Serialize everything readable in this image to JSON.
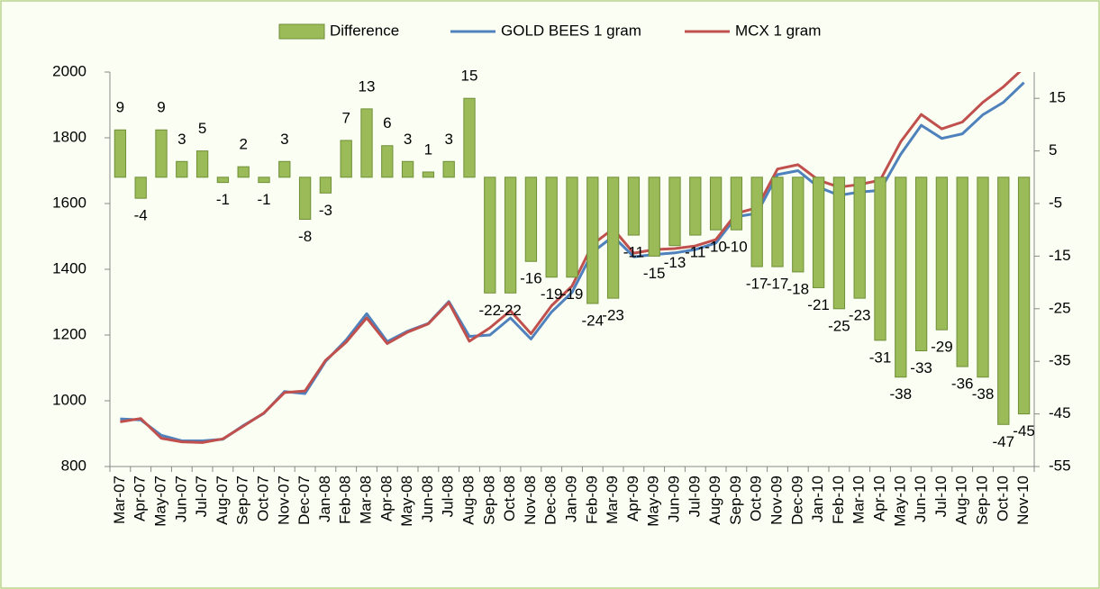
{
  "chart_data": {
    "type": "bar",
    "categories": [
      "Mar-07",
      "Apr-07",
      "May-07",
      "Jun-07",
      "Jul-07",
      "Aug-07",
      "Sep-07",
      "Oct-07",
      "Nov-07",
      "Dec-07",
      "Jan-08",
      "Feb-08",
      "Mar-08",
      "Apr-08",
      "May-08",
      "Jun-08",
      "Jul-08",
      "Aug-08",
      "Sep-08",
      "Oct-08",
      "Nov-08",
      "Dec-08",
      "Jan-09",
      "Feb-09",
      "Mar-09",
      "Apr-09",
      "May-09",
      "Jun-09",
      "Jul-09",
      "Aug-09",
      "Sep-09",
      "Oct-09",
      "Nov-09",
      "Dec-09",
      "Jan-10",
      "Feb-10",
      "Mar-10",
      "Apr-10",
      "May-10",
      "Jun-10",
      "Jul-10",
      "Aug-10",
      "Sep-10",
      "Oct-10",
      "Nov-10"
    ],
    "series": [
      {
        "name": "Difference",
        "type": "bar",
        "axis": "y2",
        "color": "#9bbb59",
        "values": [
          9,
          -4,
          9,
          3,
          5,
          -1,
          2,
          -1,
          3,
          -8,
          -3,
          7,
          13,
          6,
          3,
          1,
          3,
          15,
          -22,
          -22,
          -16,
          -19,
          -19,
          -24,
          -23,
          -11,
          -15,
          -13,
          -11,
          -10,
          -10,
          -17,
          -17,
          -18,
          -21,
          -25,
          -23,
          -31,
          -38,
          -33,
          -29,
          -36,
          -38,
          -47,
          -45
        ]
      },
      {
        "name": "GOLD BEES 1 gram",
        "type": "line",
        "color": "#4f81bd",
        "values": [
          945,
          942,
          895,
          878,
          878,
          883,
          925,
          962,
          1028,
          1022,
          1120,
          1185,
          1265,
          1180,
          1212,
          1235,
          1302,
          1196,
          1200,
          1252,
          1188,
          1270,
          1330,
          1452,
          1500,
          1438,
          1445,
          1450,
          1460,
          1480,
          1560,
          1570,
          1688,
          1700,
          1650,
          1625,
          1635,
          1640,
          1750,
          1838,
          1798,
          1812,
          1870,
          1908,
          1968
        ]
      },
      {
        "name": "MCX 1 gram",
        "type": "line",
        "color": "#c0504d",
        "values": [
          936,
          946,
          886,
          875,
          873,
          884,
          923,
          963,
          1025,
          1030,
          1123,
          1178,
          1252,
          1174,
          1209,
          1234,
          1299,
          1181,
          1222,
          1274,
          1204,
          1289,
          1349,
          1476,
          1523,
          1449,
          1460,
          1463,
          1471,
          1490,
          1570,
          1587,
          1705,
          1718,
          1671,
          1650,
          1658,
          1671,
          1788,
          1871,
          1827,
          1848,
          1908,
          1955,
          2013
        ]
      }
    ],
    "ylim": [
      800,
      2000
    ],
    "yticks": [
      800,
      1000,
      1200,
      1400,
      1600,
      1800,
      2000
    ],
    "y2lim": [
      -55,
      20
    ],
    "y2ticks": [
      -55,
      -45,
      -35,
      -25,
      -15,
      -5,
      5,
      15
    ],
    "legend": "top",
    "grid": false
  }
}
